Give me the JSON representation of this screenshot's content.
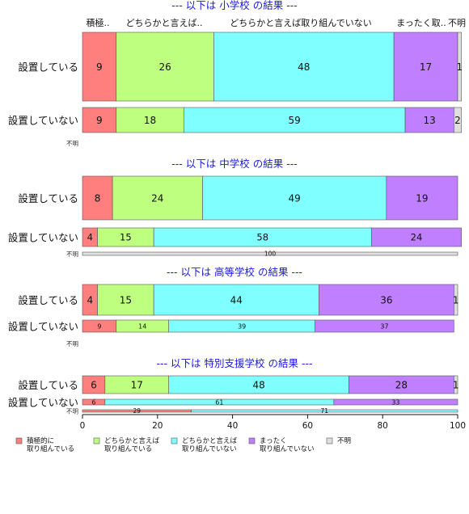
{
  "chart_data": {
    "type": "bar",
    "orientation": "horizontal",
    "stacked": true,
    "xlim": [
      0,
      100
    ],
    "x_ticks": [
      0,
      20,
      40,
      60,
      80,
      100
    ],
    "grid": false,
    "legend_position": "bottom",
    "colors": [
      "#ff7f7f",
      "#bfff7f",
      "#7fffff",
      "#bf7fff",
      "#dfdfdf"
    ],
    "category_headers": [
      "積極..",
      "どちらかと言えば..",
      "どちらかと言えば取り組んでいない",
      "まったく取..",
      "不明"
    ],
    "legend": [
      {
        "lines": [
          "積極的に",
          "取り組んでいる"
        ]
      },
      {
        "lines": [
          "どちらかと言えば",
          "取り組んでいる"
        ]
      },
      {
        "lines": [
          "どちらかと言えば",
          "取り組んでいない"
        ]
      },
      {
        "lines": [
          "まったく",
          "取り組んでいない"
        ]
      },
      {
        "lines": [
          "不明"
        ]
      }
    ],
    "sections": [
      {
        "title": "--- 以下は 小学校 の結果 ---",
        "rows": [
          {
            "label": "設置している",
            "size": "large",
            "values": [
              9,
              26,
              48,
              17,
              1
            ]
          },
          {
            "label": "設置していない",
            "size": "medium",
            "values": [
              9,
              18,
              59,
              13,
              2
            ]
          },
          {
            "label": "不明",
            "size": "tiny",
            "values": []
          }
        ]
      },
      {
        "title": "--- 以下は 中学校 の結果 ---",
        "rows": [
          {
            "label": "設置している",
            "size": "large",
            "values": [
              8,
              24,
              49,
              19,
              null
            ]
          },
          {
            "label": "設置していない",
            "size": "small",
            "values": [
              4,
              15,
              58,
              24,
              null
            ]
          },
          {
            "label": "不明",
            "size": "tiny",
            "values": [
              null,
              null,
              null,
              null,
              100
            ]
          }
        ]
      },
      {
        "title": "--- 以下は 高等学校 の結果 ---",
        "rows": [
          {
            "label": "設置している",
            "size": "medium",
            "values": [
              4,
              15,
              44,
              36,
              1
            ]
          },
          {
            "label": "設置していない",
            "size": "xsmall",
            "values": [
              9,
              14,
              39,
              37,
              null
            ]
          },
          {
            "label": "不明",
            "size": "tiny",
            "values": []
          }
        ]
      },
      {
        "title": "--- 以下は 特別支援学校 の結果 ---",
        "rows": [
          {
            "label": "設置している",
            "size": "medium",
            "values": [
              6,
              17,
              48,
              28,
              1
            ]
          },
          {
            "label": "設置していない",
            "size": "xsmall",
            "values": [
              6,
              0,
              61,
              33,
              null
            ]
          },
          {
            "label": "不明",
            "size": "tiny",
            "values": [
              29,
              null,
              71,
              null,
              null
            ]
          }
        ]
      }
    ]
  }
}
